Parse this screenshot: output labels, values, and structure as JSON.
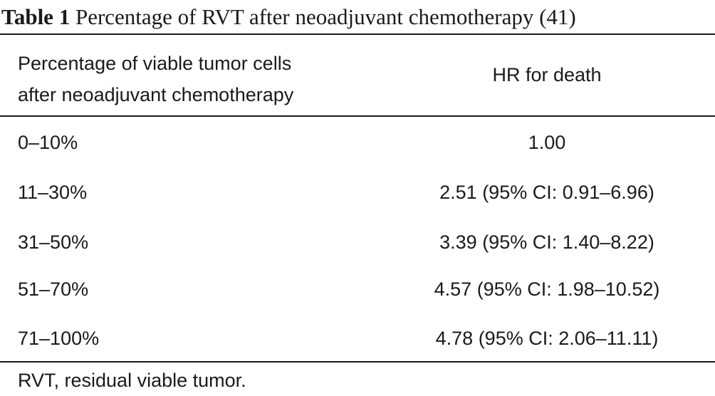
{
  "caption": {
    "label": "Table 1",
    "text": "Percentage of RVT after neoadjuvant chemotherapy (41)"
  },
  "header": {
    "col1_line1": "Percentage of viable tumor cells",
    "col1_line2": "after neoadjuvant chemotherapy",
    "col2": "HR for death"
  },
  "rows": [
    {
      "percentage": "0–10%",
      "hr": "1.00"
    },
    {
      "percentage": "11–30%",
      "hr": "2.51 (95% CI: 0.91–6.96)"
    },
    {
      "percentage": "31–50%",
      "hr": "3.39 (95% CI: 1.40–8.22)"
    },
    {
      "percentage": "51–70%",
      "hr": "4.57 (95% CI: 1.98–10.52)"
    },
    {
      "percentage": "71–100%",
      "hr": "4.78 (95% CI: 2.06–11.11)"
    }
  ],
  "footnote": "RVT, residual viable tumor."
}
